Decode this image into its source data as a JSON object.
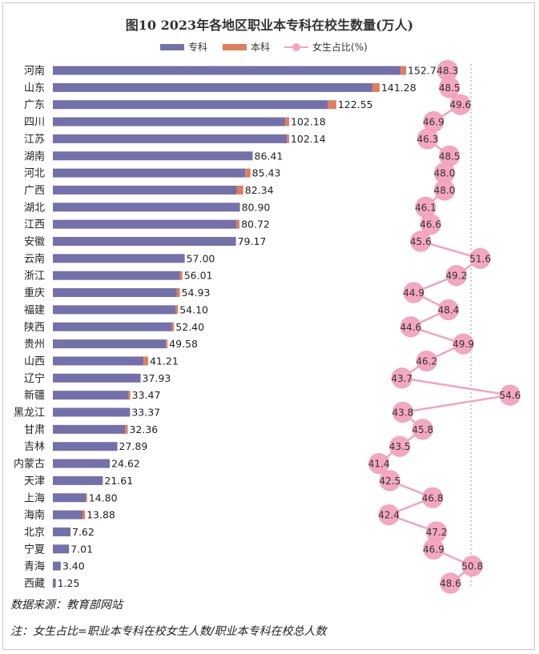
{
  "chart_data": {
    "type": "bar",
    "orientation": "horizontal-stacked-with-line",
    "title": "图10  2023年各地区职业本专科在校生数量(万人)",
    "legend": {
      "vocational": "专科",
      "undergraduate": "本科",
      "female_ratio": "女生占比(%)"
    },
    "colors": {
      "vocational": "#7470aa",
      "undergraduate": "#e07d5b",
      "female_ratio": "#f2a5bd",
      "female_ratio_point": "#f4a8c0",
      "guide": "#bbbbbb"
    },
    "categories": [
      "河南",
      "山东",
      "广东",
      "四川",
      "江苏",
      "湖南",
      "河北",
      "广西",
      "湖北",
      "江西",
      "安徽",
      "云南",
      "浙江",
      "重庆",
      "福建",
      "陕西",
      "贵州",
      "山西",
      "辽宁",
      "新疆",
      "黑龙江",
      "甘肃",
      "吉林",
      "内蒙古",
      "天津",
      "上海",
      "海南",
      "北京",
      "宁夏",
      "青海",
      "西藏"
    ],
    "series": [
      {
        "name": "专科",
        "values": [
          150.4,
          138.2,
          118.9,
          100.5,
          101.2,
          86.41,
          83.2,
          79.6,
          80.9,
          79.3,
          79.17,
          57.0,
          54.9,
          53.6,
          53.0,
          51.4,
          48.8,
          39.2,
          37.93,
          32.7,
          33.37,
          31.2,
          27.89,
          24.62,
          21.61,
          14.3,
          12.8,
          7.62,
          7.01,
          3.4,
          1.25
        ]
      },
      {
        "name": "本科",
        "values": [
          2.34,
          3.08,
          3.65,
          1.68,
          0.94,
          0.0,
          2.23,
          2.74,
          0.0,
          1.42,
          0.0,
          0.0,
          1.11,
          1.33,
          1.1,
          1.0,
          0.78,
          2.01,
          0.0,
          0.77,
          0.0,
          1.16,
          0.0,
          0.0,
          0.0,
          0.5,
          1.08,
          0.0,
          0.0,
          0.0,
          0.0
        ]
      }
    ],
    "totals": [
      "152.74",
      "141.28",
      "122.55",
      "102.18",
      "102.14",
      "86.41",
      "85.43",
      "82.34",
      "80.90",
      "80.72",
      "79.17",
      "57.00",
      "56.01",
      "54.93",
      "54.10",
      "52.40",
      "49.58",
      "41.21",
      "37.93",
      "33.47",
      "33.37",
      "32.36",
      "27.89",
      "24.62",
      "21.61",
      "14.80",
      "13.88",
      "7.62",
      "7.01",
      "3.40",
      "1.25"
    ],
    "female_ratio": [
      "48.3",
      "48.5",
      "49.6",
      "46.9",
      "46.3",
      "48.5",
      "48.0",
      "48.0",
      "46.1",
      "46.6",
      "45.6",
      "51.6",
      "49.2",
      "44.9",
      "48.4",
      "44.6",
      "49.9",
      "46.2",
      "43.7",
      "54.6",
      "43.8",
      "45.8",
      "43.5",
      "41.4",
      "42.5",
      "46.8",
      "42.4",
      "47.2",
      "46.9",
      "50.8",
      "48.6"
    ],
    "xlim": [
      0,
      160
    ],
    "female_ratio_range": [
      40.5,
      55.5
    ]
  },
  "footer": {
    "source": "数据来源：教育部网站",
    "note": "注：女生占比=职业本专科在校女生人数/职业本专科在校总人数"
  }
}
